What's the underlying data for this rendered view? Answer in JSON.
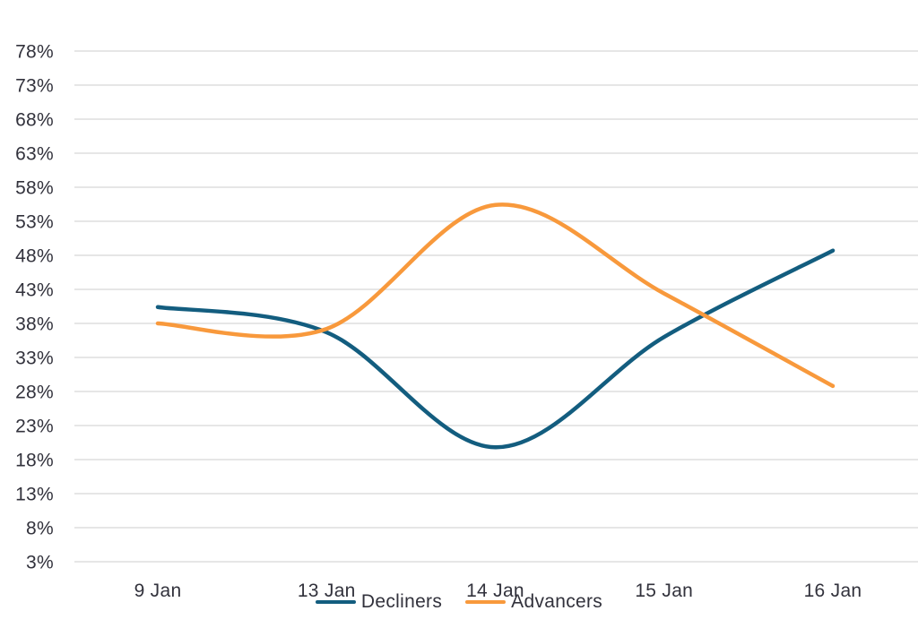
{
  "chart_data": {
    "type": "line",
    "title": "",
    "xlabel": "",
    "ylabel": "",
    "curve": "smooth",
    "grid": true,
    "legend_position": "bottom",
    "categories": [
      "9 Jan",
      "13 Jan",
      "14 Jan",
      "15 Jan",
      "16 Jan"
    ],
    "series": [
      {
        "name": "Decliners",
        "color": "#135d7f",
        "values": [
          40.4,
          36.7,
          19.8,
          36.0,
          48.7
        ]
      },
      {
        "name": "Advancers",
        "color": "#f8993c",
        "values": [
          38.0,
          37.2,
          55.4,
          42.4,
          28.8
        ]
      }
    ],
    "ylim": [
      3,
      78
    ],
    "ytick_step": 5,
    "ytick_labels": [
      "78%",
      "73%",
      "68%",
      "63%",
      "58%",
      "53%",
      "48%",
      "43%",
      "38%",
      "33%",
      "28%",
      "23%",
      "18%",
      "13%",
      "8%",
      "3%"
    ]
  },
  "colors": {
    "text": "#32323c",
    "gridline": "#e6e6e6",
    "background": "#ffffff"
  }
}
